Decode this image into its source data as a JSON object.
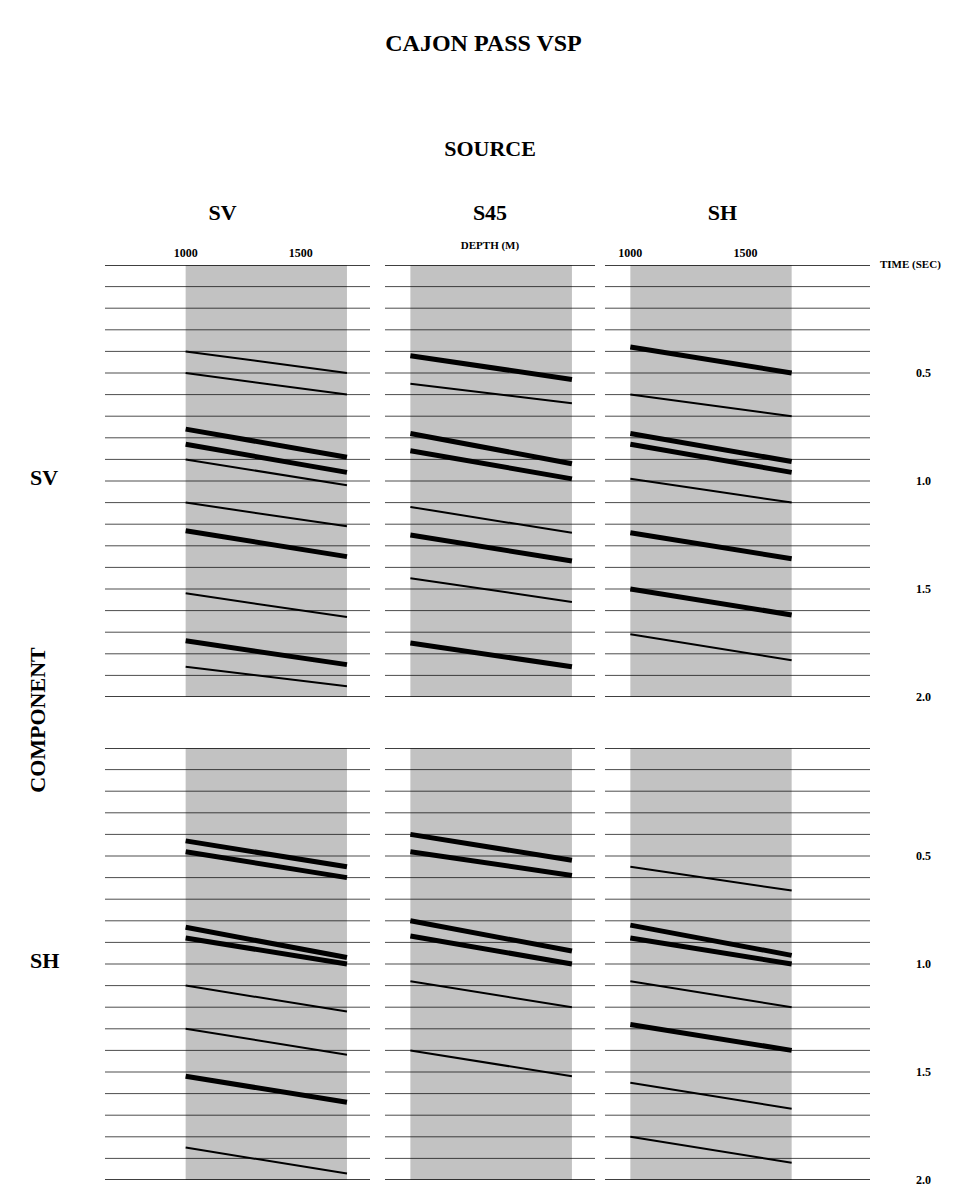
{
  "title": "CAJON PASS VSP",
  "header": "SOURCE",
  "row_header": "COMPONENT",
  "columns": [
    "SV",
    "S45",
    "SH"
  ],
  "rows": [
    "SV",
    "SH"
  ],
  "chart_data": [
    {
      "type": "line",
      "xlim": [
        650,
        1800
      ],
      "ylim": [
        0,
        2
      ],
      "xticks": [
        1000,
        1500
      ],
      "tick_labels": "x",
      "time_lines": [
        0,
        0.1,
        0.2,
        0.3,
        0.4,
        0.5,
        0.6,
        0.7,
        0.8,
        0.9,
        1.0,
        1.1,
        1.2,
        1.3,
        1.4,
        1.5,
        1.6,
        1.7,
        1.8,
        1.9,
        2.0
      ],
      "trace_range": [
        1000,
        1700
      ],
      "event_depths": [
        1000,
        1700
      ],
      "events": [
        {
          "times": [
            0.4,
            0.5
          ],
          "line_style": "thin"
        },
        {
          "times": [
            0.5,
            0.6
          ],
          "line_style": "thin"
        },
        {
          "times": [
            0.76,
            0.89
          ],
          "line_style": "bold"
        },
        {
          "times": [
            0.83,
            0.96
          ],
          "line_style": "bold"
        },
        {
          "times": [
            0.9,
            1.02
          ],
          "line_style": "thin"
        },
        {
          "times": [
            1.1,
            1.21
          ],
          "line_style": "thin"
        },
        {
          "times": [
            1.23,
            1.35
          ],
          "line_style": "bold"
        },
        {
          "times": [
            1.52,
            1.63
          ],
          "line_style": "thin"
        },
        {
          "times": [
            1.74,
            1.85
          ],
          "line_style": "bold"
        },
        {
          "times": [
            1.86,
            1.95
          ],
          "line_style": "thin"
        }
      ]
    },
    {
      "type": "line",
      "xlim": [
        890,
        1800
      ],
      "ylim": [
        0,
        2
      ],
      "xlabel": "DEPTH (M)",
      "tick_labels": false,
      "time_lines": [
        0,
        0.1,
        0.2,
        0.3,
        0.4,
        0.5,
        0.6,
        0.7,
        0.8,
        0.9,
        1.0,
        1.1,
        1.2,
        1.3,
        1.4,
        1.5,
        1.6,
        1.7,
        1.8,
        1.9,
        2.0
      ],
      "trace_range": [
        1000,
        1700
      ],
      "event_depths": [
        1000,
        1700
      ],
      "events": [
        {
          "times": [
            0.42,
            0.53
          ],
          "line_style": "bold"
        },
        {
          "times": [
            0.55,
            0.64
          ],
          "line_style": "thin"
        },
        {
          "times": [
            0.78,
            0.92
          ],
          "line_style": "bold"
        },
        {
          "times": [
            0.86,
            0.99
          ],
          "line_style": "bold"
        },
        {
          "times": [
            1.12,
            1.24
          ],
          "line_style": "thin"
        },
        {
          "times": [
            1.25,
            1.37
          ],
          "line_style": "bold"
        },
        {
          "times": [
            1.45,
            1.56
          ],
          "line_style": "thin"
        },
        {
          "times": [
            1.75,
            1.86
          ],
          "line_style": "bold"
        }
      ]
    },
    {
      "type": "line",
      "xlim": [
        890,
        2040
      ],
      "ylim": [
        0,
        2
      ],
      "xticks": [
        1000,
        1500
      ],
      "ylabel": "TIME (SEC)",
      "yticks": [
        {
          "value": 0.5,
          "label": "0.5"
        },
        {
          "value": 1,
          "label": "1.0"
        },
        {
          "value": 1.5,
          "label": "1.5"
        },
        {
          "value": 2,
          "label": "2.0"
        }
      ],
      "time_lines": [
        0,
        0.1,
        0.2,
        0.3,
        0.4,
        0.5,
        0.6,
        0.7,
        0.8,
        0.9,
        1.0,
        1.1,
        1.2,
        1.3,
        1.4,
        1.5,
        1.6,
        1.7,
        1.8,
        1.9,
        2.0
      ],
      "trace_range": [
        1000,
        1700
      ],
      "event_depths": [
        1000,
        1700
      ],
      "events": [
        {
          "times": [
            0.38,
            0.5
          ],
          "line_style": "bold"
        },
        {
          "times": [
            0.6,
            0.7
          ],
          "line_style": "thin"
        },
        {
          "times": [
            0.78,
            0.91
          ],
          "line_style": "bold"
        },
        {
          "times": [
            0.83,
            0.96
          ],
          "line_style": "bold"
        },
        {
          "times": [
            0.99,
            1.1
          ],
          "line_style": "thin"
        },
        {
          "times": [
            1.24,
            1.36
          ],
          "line_style": "bold"
        },
        {
          "times": [
            1.5,
            1.62
          ],
          "line_style": "bold"
        },
        {
          "times": [
            1.71,
            1.83
          ],
          "line_style": "thin"
        }
      ]
    },
    {
      "type": "line",
      "xlim": [
        650,
        1800
      ],
      "ylim": [
        0,
        2
      ],
      "tick_labels": false,
      "time_lines": [
        0,
        0.1,
        0.2,
        0.3,
        0.4,
        0.5,
        0.6,
        0.7,
        0.8,
        0.9,
        1.0,
        1.1,
        1.2,
        1.3,
        1.4,
        1.5,
        1.6,
        1.7,
        1.8,
        1.9,
        2.0
      ],
      "trace_range": [
        1000,
        1700
      ],
      "event_depths": [
        1000,
        1700
      ],
      "events": [
        {
          "times": [
            0.43,
            0.55
          ],
          "line_style": "bold"
        },
        {
          "times": [
            0.48,
            0.6
          ],
          "line_style": "bold"
        },
        {
          "times": [
            0.83,
            0.97
          ],
          "line_style": "bold"
        },
        {
          "times": [
            0.88,
            1.0
          ],
          "line_style": "bold"
        },
        {
          "times": [
            1.1,
            1.22
          ],
          "line_style": "thin"
        },
        {
          "times": [
            1.3,
            1.42
          ],
          "line_style": "thin"
        },
        {
          "times": [
            1.52,
            1.64
          ],
          "line_style": "bold"
        },
        {
          "times": [
            1.85,
            1.97
          ],
          "line_style": "thin"
        }
      ]
    },
    {
      "type": "line",
      "xlim": [
        890,
        1800
      ],
      "ylim": [
        0,
        2
      ],
      "tick_labels": false,
      "time_lines": [
        0,
        0.1,
        0.2,
        0.3,
        0.4,
        0.5,
        0.6,
        0.7,
        0.8,
        0.9,
        1.0,
        1.1,
        1.2,
        1.3,
        1.4,
        1.5,
        1.6,
        1.7,
        1.8,
        1.9,
        2.0
      ],
      "trace_range": [
        1000,
        1700
      ],
      "event_depths": [
        1000,
        1700
      ],
      "events": [
        {
          "times": [
            0.4,
            0.52
          ],
          "line_style": "bold"
        },
        {
          "times": [
            0.48,
            0.59
          ],
          "line_style": "bold"
        },
        {
          "times": [
            0.8,
            0.94
          ],
          "line_style": "bold"
        },
        {
          "times": [
            0.87,
            1.0
          ],
          "line_style": "bold"
        },
        {
          "times": [
            1.08,
            1.2
          ],
          "line_style": "thin"
        },
        {
          "times": [
            1.4,
            1.52
          ],
          "line_style": "thin"
        }
      ]
    },
    {
      "type": "line",
      "xlim": [
        890,
        2040
      ],
      "ylim": [
        0,
        2
      ],
      "tick_labels": "y",
      "yticks": [
        {
          "value": 0.5,
          "label": "0.5"
        },
        {
          "value": 1,
          "label": "1.0"
        },
        {
          "value": 1.5,
          "label": "1.5"
        },
        {
          "value": 2,
          "label": "2.0"
        }
      ],
      "time_lines": [
        0,
        0.1,
        0.2,
        0.3,
        0.4,
        0.5,
        0.6,
        0.7,
        0.8,
        0.9,
        1.0,
        1.1,
        1.2,
        1.3,
        1.4,
        1.5,
        1.6,
        1.7,
        1.8,
        1.9,
        2.0
      ],
      "trace_range": [
        1000,
        1700
      ],
      "event_depths": [
        1000,
        1700
      ],
      "events": [
        {
          "times": [
            0.55,
            0.66
          ],
          "line_style": "thin"
        },
        {
          "times": [
            0.82,
            0.96
          ],
          "line_style": "bold"
        },
        {
          "times": [
            0.88,
            1.0
          ],
          "line_style": "bold"
        },
        {
          "times": [
            1.08,
            1.2
          ],
          "line_style": "thin"
        },
        {
          "times": [
            1.28,
            1.4
          ],
          "line_style": "bold"
        },
        {
          "times": [
            1.55,
            1.67
          ],
          "line_style": "thin"
        },
        {
          "times": [
            1.8,
            1.92
          ],
          "line_style": "thin"
        }
      ]
    }
  ]
}
